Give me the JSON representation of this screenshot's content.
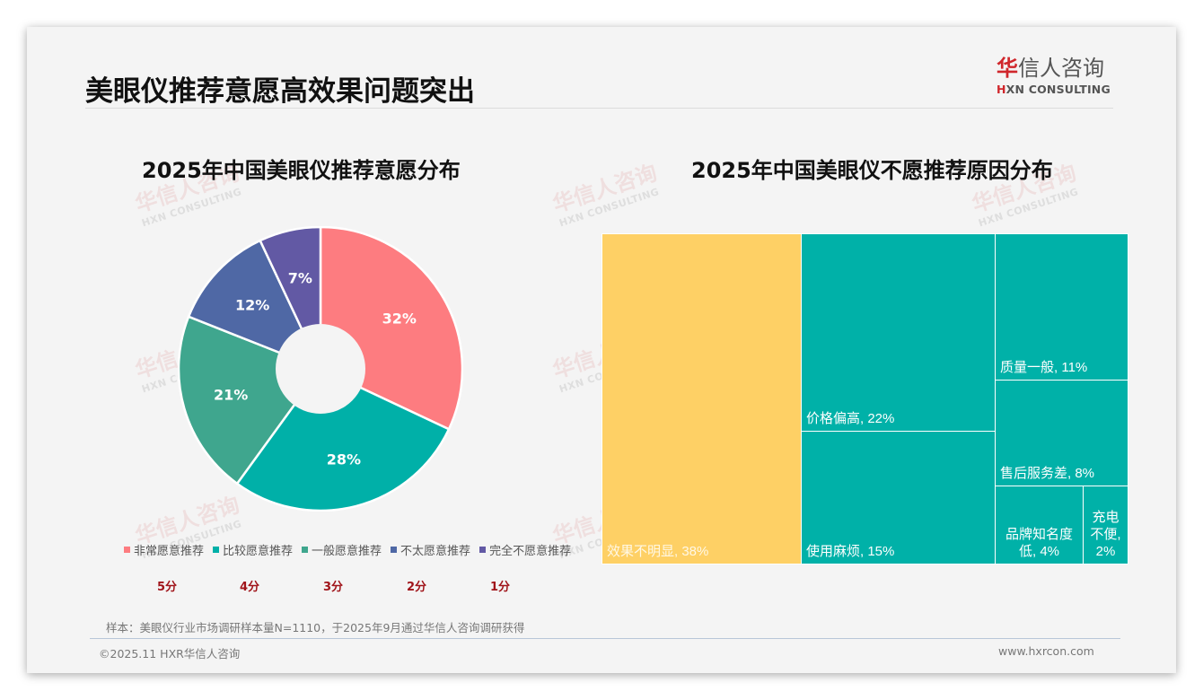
{
  "page": {
    "title": "美眼仪推荐意愿高效果问题突出",
    "logo": {
      "cn_red": "华",
      "cn_rest": "信人咨询",
      "en_red": "H",
      "en_rest": "XN CONSULTING"
    },
    "watermark": {
      "cn": "华信人咨询",
      "en": "HXN CONSULTING"
    },
    "footnote": "样本：美眼仪行业市场调研样本量N=1110，于2025年9月通过华信人咨询调研获得",
    "footer_left": "©2025.11 HXR华信人咨询",
    "footer_right": "www.hxrcon.com"
  },
  "colors": {
    "very_willing": "#fd7c80",
    "fairly_willing": "#00b0a8",
    "neutral": "#3fa68e",
    "not_very_willing": "#4f68a5",
    "unwilling": "#6259a4",
    "treemap_highlight": "#fed065",
    "treemap_default": "#00b1a8",
    "score_red": "#a0141a"
  },
  "chart_data": [
    {
      "type": "pie",
      "title": "2025年中国美眼仪推荐意愿分布",
      "donut": true,
      "categories": [
        "非常愿意推荐",
        "比较愿意推荐",
        "一般愿意推荐",
        "不太愿意推荐",
        "完全不愿意推荐"
      ],
      "values": [
        32,
        28,
        21,
        12,
        7
      ],
      "labels": [
        "32%",
        "28%",
        "21%",
        "12%",
        "7%"
      ],
      "scores": [
        "5分",
        "4分",
        "3分",
        "2分",
        "1分"
      ],
      "colors": [
        "#fd7c80",
        "#00b0a8",
        "#3fa68e",
        "#4f68a5",
        "#6259a4"
      ],
      "legend_position": "bottom"
    },
    {
      "type": "treemap",
      "title": "2025年中国美眼仪不愿推荐原因分布",
      "categories": [
        "效果不明显",
        "价格偏高",
        "使用麻烦",
        "质量一般",
        "售后服务差",
        "品牌知名度低",
        "充电不便"
      ],
      "values": [
        38,
        22,
        15,
        11,
        8,
        4,
        2
      ],
      "labels": [
        "效果不明显, 38%",
        "价格偏高, 22%",
        "使用麻烦, 15%",
        "质量一般, 11%",
        "售后服务差, 8%",
        "品牌知名度低, 4%",
        "充电不便, 2%"
      ],
      "colors": [
        "#fed065",
        "#00b1a8",
        "#00b1a8",
        "#00b1a8",
        "#00b1a8",
        "#00b1a8",
        "#00b1a8"
      ]
    }
  ],
  "treemap_labels_display": {
    "brand_line1": "品牌知名度",
    "brand_line2": "低, 4%",
    "charge_line1": "充电",
    "charge_line2": "不便,",
    "charge_line3": "2%"
  }
}
